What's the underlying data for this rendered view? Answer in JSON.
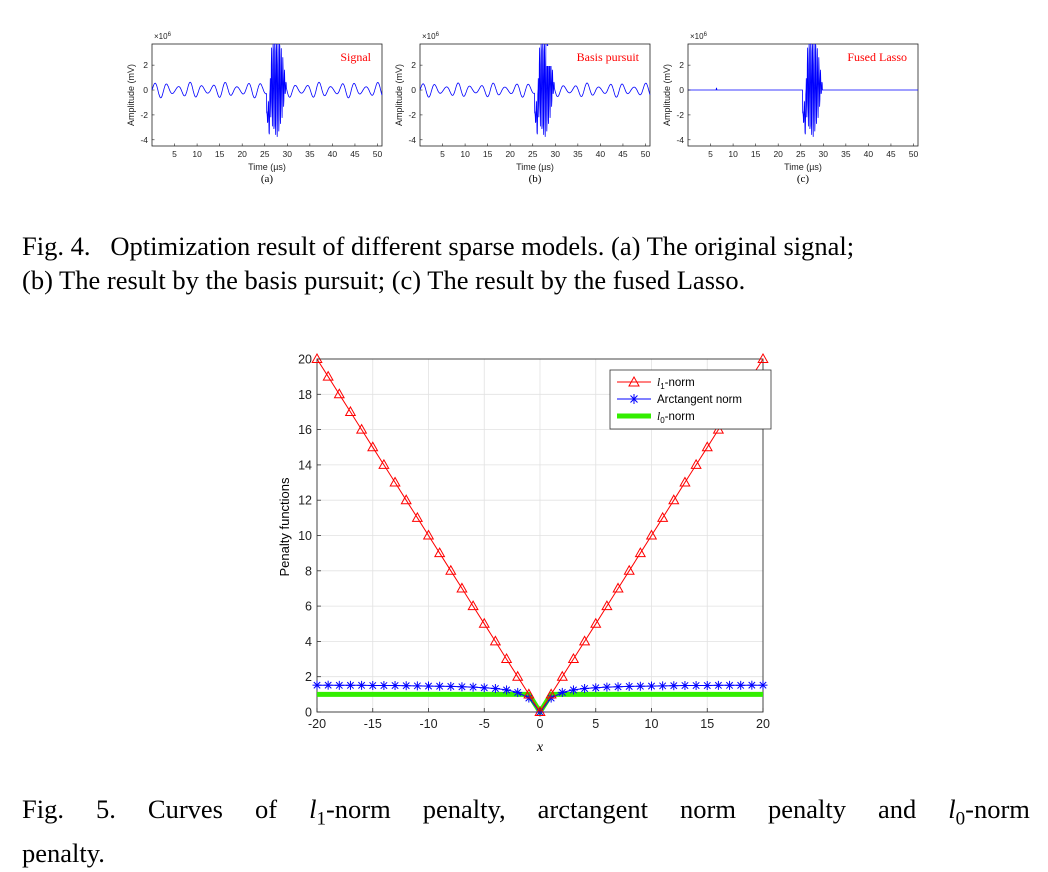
{
  "figure4": {
    "subplots": [
      {
        "panel_label": "(a)",
        "legend_text": "Signal",
        "ylabel": "Amplitude (mV)",
        "xlabel": "Time (µs)",
        "exponent": "×10",
        "exponent_power": "6",
        "xticks": [
          "5",
          "10",
          "15",
          "20",
          "25",
          "30",
          "35",
          "40",
          "45",
          "50"
        ],
        "yticks": [
          "2",
          "0",
          "-2",
          "-4"
        ]
      },
      {
        "panel_label": "(b)",
        "legend_text": "Basis pursuit",
        "ylabel": "Amplitude (mV)",
        "xlabel": "Time (µs)",
        "exponent": "×10",
        "exponent_power": "6",
        "xticks": [
          "5",
          "10",
          "15",
          "20",
          "25",
          "30",
          "35",
          "40",
          "45",
          "50"
        ],
        "yticks": [
          "2",
          "0",
          "-2",
          "-4"
        ]
      },
      {
        "panel_label": "(c)",
        "legend_text": "Fused Lasso",
        "ylabel": "Amplitude (mV)",
        "xlabel": "Time (µs)",
        "exponent": "×10",
        "exponent_power": "6",
        "xticks": [
          "5",
          "10",
          "15",
          "20",
          "25",
          "30",
          "35",
          "40",
          "45",
          "50"
        ],
        "yticks": [
          "2",
          "0",
          "-2",
          "-4"
        ]
      }
    ],
    "caption": {
      "label": "Fig. 4.",
      "line1_rest": "Optimization result of different sparse models. (a) The original signal;",
      "line2": "(b) The result by the basis pursuit; (c) The result by the fused Lasso."
    }
  },
  "figure5": {
    "caption": {
      "words": [
        "Fig.",
        "5.",
        "Curves",
        "of"
      ],
      "l1_letter": "l",
      "l1_sub": "1",
      "mid_words": [
        "-norm",
        "penalty,",
        "arctangent",
        "norm",
        "penalty",
        "and"
      ],
      "l0_letter": "l",
      "l0_sub": "0",
      "end_word": "-norm",
      "line2": "penalty."
    },
    "legend": {
      "l1_letter": "l",
      "l1_sub": "1",
      "l1_suffix": "-norm",
      "arctan": "Arctangent norm",
      "l0_letter": "l",
      "l0_sub": "0",
      "l0_suffix": "-norm"
    }
  },
  "chart_data": [
    {
      "type": "line",
      "title": "Signal",
      "xlabel": "Time (µs)",
      "ylabel": "Amplitude (mV)",
      "y_scale_factor": "×10^6",
      "xlim": [
        0,
        51
      ],
      "ylim": [
        -4.5,
        3.7
      ],
      "series": [
        {
          "name": "Signal",
          "color": "#0000ff",
          "description_values": {
            "background_oscillation_amplitude": 0.6,
            "burst_start": 25.5,
            "burst_end": 29.5,
            "burst_peak": 3.7,
            "burst_trough": -4.5
          }
        }
      ]
    },
    {
      "type": "line",
      "title": "Basis pursuit",
      "xlabel": "Time (µs)",
      "ylabel": "Amplitude (mV)",
      "y_scale_factor": "×10^6",
      "xlim": [
        0,
        51
      ],
      "ylim": [
        -4.5,
        3.7
      ],
      "series": [
        {
          "name": "Basis pursuit",
          "color": "#0000ff",
          "description_values": {
            "background_oscillation_amplitude": 0.55,
            "burst_start": 25.5,
            "burst_end": 29.5,
            "burst_peak": 3.7,
            "burst_trough": -4.5
          }
        }
      ]
    },
    {
      "type": "line",
      "title": "Fused Lasso",
      "xlabel": "Time (µs)",
      "ylabel": "Amplitude (mV)",
      "y_scale_factor": "×10^6",
      "xlim": [
        0,
        51
      ],
      "ylim": [
        -4.5,
        3.7
      ],
      "series": [
        {
          "name": "Fused Lasso",
          "color": "#0000ff",
          "description_values": {
            "background_oscillation_amplitude": 0.0,
            "burst_start": 25.5,
            "burst_end": 29.5,
            "burst_peak": 3.7,
            "burst_trough": -4.5
          }
        }
      ]
    },
    {
      "type": "line",
      "title": "",
      "xlabel": "x",
      "ylabel": "Penalty functions",
      "xlim": [
        -20,
        20
      ],
      "ylim": [
        0,
        20
      ],
      "xticks": [
        -20,
        -15,
        -10,
        -5,
        0,
        5,
        10,
        15,
        20
      ],
      "yticks": [
        0,
        2,
        4,
        6,
        8,
        10,
        12,
        14,
        16,
        18,
        20
      ],
      "grid": true,
      "legend_position": "top-right",
      "x": [
        -20,
        -19,
        -18,
        -17,
        -16,
        -15,
        -14,
        -13,
        -12,
        -11,
        -10,
        -9,
        -8,
        -7,
        -6,
        -5,
        -4,
        -3,
        -2,
        -1,
        0,
        1,
        2,
        3,
        4,
        5,
        6,
        7,
        8,
        9,
        10,
        11,
        12,
        13,
        14,
        15,
        16,
        17,
        18,
        19,
        20
      ],
      "series": [
        {
          "name": "l1-norm",
          "color": "#ff0000",
          "marker": "triangle",
          "values": [
            20,
            19,
            18,
            17,
            16,
            15,
            14,
            13,
            12,
            11,
            10,
            9,
            8,
            7,
            6,
            5,
            4,
            3,
            2,
            1,
            0,
            1,
            2,
            3,
            4,
            5,
            6,
            7,
            8,
            9,
            10,
            11,
            12,
            13,
            14,
            15,
            16,
            17,
            18,
            19,
            20
          ]
        },
        {
          "name": "Arctangent norm",
          "color": "#0000ff",
          "marker": "asterisk",
          "values": [
            1.52,
            1.52,
            1.51,
            1.51,
            1.51,
            1.5,
            1.5,
            1.5,
            1.49,
            1.48,
            1.47,
            1.46,
            1.45,
            1.43,
            1.41,
            1.37,
            1.33,
            1.25,
            1.11,
            0.79,
            0,
            0.79,
            1.11,
            1.25,
            1.33,
            1.37,
            1.41,
            1.43,
            1.45,
            1.46,
            1.47,
            1.48,
            1.49,
            1.5,
            1.5,
            1.5,
            1.51,
            1.51,
            1.51,
            1.52,
            1.52
          ]
        },
        {
          "name": "l0-norm",
          "color": "#33ee00",
          "marker": "none",
          "values": [
            1,
            1,
            1,
            1,
            1,
            1,
            1,
            1,
            1,
            1,
            1,
            1,
            1,
            1,
            1,
            1,
            1,
            1,
            1,
            1,
            0,
            1,
            1,
            1,
            1,
            1,
            1,
            1,
            1,
            1,
            1,
            1,
            1,
            1,
            1,
            1,
            1,
            1,
            1,
            1,
            1
          ]
        }
      ]
    }
  ]
}
